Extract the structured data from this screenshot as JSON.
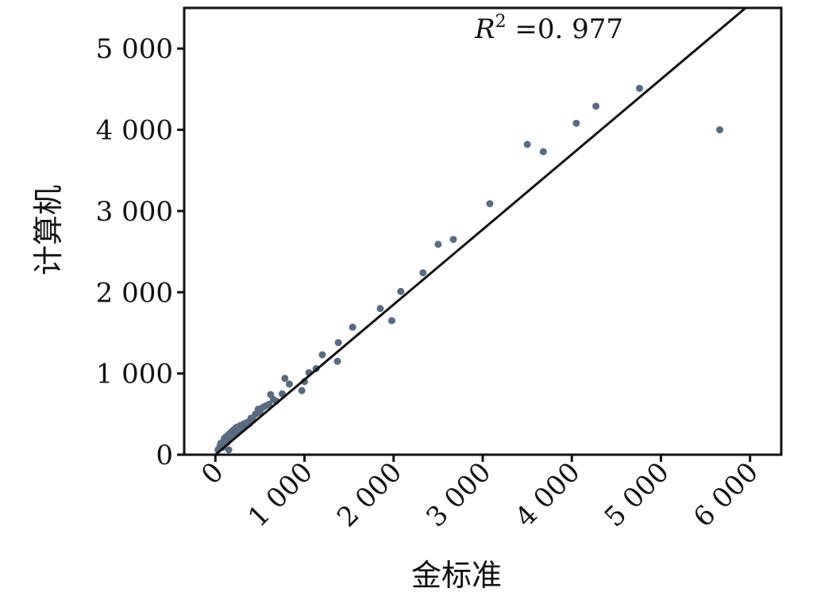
{
  "chart_data": {
    "type": "scatter",
    "xlabel": "金标准",
    "ylabel": "计算机",
    "xlim": [
      -350,
      6350
    ],
    "ylim": [
      0,
      5500
    ],
    "x_ticks": [
      0,
      1000,
      2000,
      3000,
      4000,
      5000,
      6000
    ],
    "x_tick_labels": [
      "0",
      "1 000",
      "2 000",
      "3 000",
      "4 000",
      "5 000",
      "6 000"
    ],
    "y_ticks": [
      0,
      1000,
      2000,
      3000,
      4000,
      5000
    ],
    "y_tick_labels": [
      "0",
      "1 000",
      "2 000",
      "3 000",
      "4 000",
      "5 000"
    ],
    "annotation": {
      "symbol": "R",
      "sup": "2",
      "text": " =0. 977"
    },
    "regression_line": {
      "x1": 0,
      "y1": 0,
      "x2": 5950,
      "y2": 5500
    },
    "point_color": "#5a6a80",
    "series": [
      {
        "points": [
          [
            30,
            60
          ],
          [
            50,
            100
          ],
          [
            60,
            140
          ],
          [
            70,
            120
          ],
          [
            80,
            90
          ],
          [
            90,
            160
          ],
          [
            100,
            200
          ],
          [
            110,
            180
          ],
          [
            120,
            220
          ],
          [
            130,
            150
          ],
          [
            140,
            240
          ],
          [
            150,
            60
          ],
          [
            160,
            260
          ],
          [
            170,
            200
          ],
          [
            180,
            280
          ],
          [
            190,
            240
          ],
          [
            200,
            300
          ],
          [
            210,
            260
          ],
          [
            220,
            320
          ],
          [
            230,
            280
          ],
          [
            240,
            340
          ],
          [
            260,
            300
          ],
          [
            280,
            360
          ],
          [
            300,
            320
          ],
          [
            320,
            380
          ],
          [
            340,
            360
          ],
          [
            360,
            400
          ],
          [
            380,
            380
          ],
          [
            400,
            450
          ],
          [
            420,
            430
          ],
          [
            450,
            500
          ],
          [
            480,
            560
          ],
          [
            500,
            520
          ],
          [
            530,
            580
          ],
          [
            560,
            600
          ],
          [
            600,
            620
          ],
          [
            620,
            740
          ],
          [
            650,
            680
          ],
          [
            680,
            660
          ],
          [
            750,
            750
          ],
          [
            780,
            940
          ],
          [
            830,
            870
          ],
          [
            970,
            790
          ],
          [
            1000,
            900
          ],
          [
            1050,
            1010
          ],
          [
            1130,
            1060
          ],
          [
            1200,
            1230
          ],
          [
            1370,
            1150
          ],
          [
            1380,
            1380
          ],
          [
            1540,
            1570
          ],
          [
            1850,
            1800
          ],
          [
            1980,
            1650
          ],
          [
            2080,
            2010
          ],
          [
            2330,
            2240
          ],
          [
            2500,
            2590
          ],
          [
            2670,
            2650
          ],
          [
            3080,
            3090
          ],
          [
            3500,
            3820
          ],
          [
            3680,
            3730
          ],
          [
            4050,
            4080
          ],
          [
            4270,
            4290
          ],
          [
            4760,
            4510
          ],
          [
            5660,
            4000
          ]
        ]
      }
    ]
  }
}
